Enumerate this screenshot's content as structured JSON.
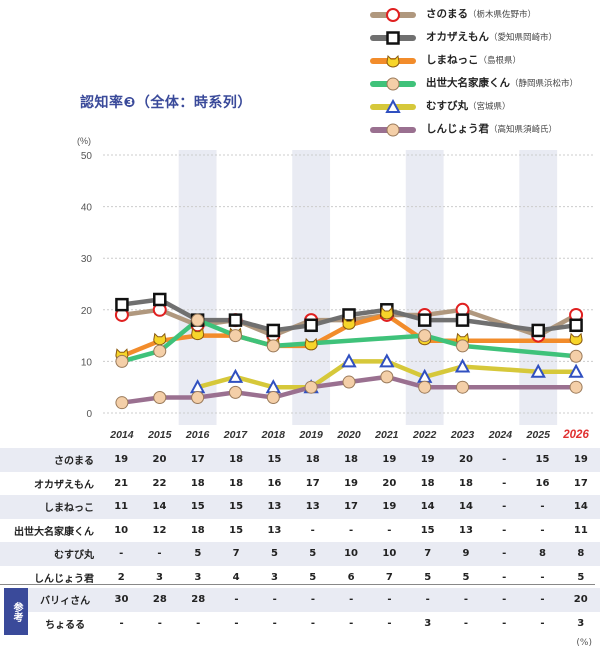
{
  "title": "認知率❸（全体：時系列）",
  "unit_top": "(%)",
  "unit_bottom": "(%)",
  "chart_data": {
    "type": "line",
    "x": [
      "2014",
      "2015",
      "2016",
      "2017",
      "2018",
      "2019",
      "2020",
      "2021",
      "2022",
      "2023",
      "2024",
      "2025",
      "2026"
    ],
    "highlight_x": "2026",
    "ylim": [
      0,
      50
    ],
    "yticks": [
      0,
      10,
      20,
      30,
      40,
      50
    ],
    "series": [
      {
        "name": "さのまる",
        "location": "（栃木県佐野市）",
        "color": "#b0987e",
        "marker": "red-circle",
        "values": [
          19,
          20,
          17,
          18,
          15,
          18,
          18,
          19,
          19,
          20,
          null,
          15,
          19
        ]
      },
      {
        "name": "オカザえもん",
        "location": "（愛知県岡崎市）",
        "color": "#707070",
        "marker": "black-square",
        "values": [
          21,
          22,
          18,
          18,
          16,
          17,
          19,
          20,
          18,
          18,
          null,
          16,
          17
        ]
      },
      {
        "name": "しまねっこ",
        "location": "（島根県）",
        "color": "#f28c2b",
        "marker": "yellow-cat",
        "values": [
          11,
          14,
          15,
          15,
          13,
          13,
          17,
          19,
          14,
          14,
          null,
          null,
          14
        ]
      },
      {
        "name": "出世大名家康くん",
        "location": "（静岡県浜松市）",
        "color": "#3fc27a",
        "marker": "peach-circle",
        "values": [
          10,
          12,
          18,
          15,
          13,
          null,
          null,
          null,
          15,
          13,
          null,
          null,
          11
        ]
      },
      {
        "name": "むすび丸",
        "location": "（宮城県）",
        "color": "#d6c83a",
        "marker": "blue-triangle",
        "values": [
          null,
          null,
          5,
          7,
          5,
          5,
          10,
          10,
          7,
          9,
          null,
          8,
          8
        ]
      },
      {
        "name": "しんじょう君",
        "location": "（高知県須崎氏）",
        "color": "#9a7090",
        "marker": "peach-circle",
        "values": [
          2,
          3,
          3,
          4,
          3,
          5,
          6,
          7,
          5,
          5,
          null,
          null,
          5
        ]
      }
    ]
  },
  "table": {
    "rows": [
      {
        "name": "さのまる",
        "cells": [
          "19",
          "20",
          "17",
          "18",
          "15",
          "18",
          "18",
          "19",
          "19",
          "20",
          "-",
          "15",
          "19"
        ]
      },
      {
        "name": "オカザえもん",
        "cells": [
          "21",
          "22",
          "18",
          "18",
          "16",
          "17",
          "19",
          "20",
          "18",
          "18",
          "-",
          "16",
          "17"
        ]
      },
      {
        "name": "しまねっこ",
        "cells": [
          "11",
          "14",
          "15",
          "15",
          "13",
          "13",
          "17",
          "19",
          "14",
          "14",
          "-",
          "-",
          "14"
        ]
      },
      {
        "name": "出世大名家康くん",
        "cells": [
          "10",
          "12",
          "18",
          "15",
          "13",
          "-",
          "-",
          "-",
          "15",
          "13",
          "-",
          "-",
          "11"
        ]
      },
      {
        "name": "むすび丸",
        "cells": [
          "-",
          "-",
          "5",
          "7",
          "5",
          "5",
          "10",
          "10",
          "7",
          "9",
          "-",
          "8",
          "8"
        ]
      },
      {
        "name": "しんじょう君",
        "cells": [
          "2",
          "3",
          "3",
          "4",
          "3",
          "5",
          "6",
          "7",
          "5",
          "5",
          "-",
          "-",
          "5"
        ]
      }
    ],
    "ref_label": "参考",
    "ref_rows": [
      {
        "name": "バリィさん",
        "cells": [
          "30",
          "28",
          "28",
          "-",
          "-",
          "-",
          "-",
          "-",
          "-",
          "-",
          "-",
          "-",
          "20"
        ]
      },
      {
        "name": "ちょるる",
        "cells": [
          "-",
          "-",
          "-",
          "-",
          "-",
          "-",
          "-",
          "-",
          "3",
          "-",
          "-",
          "-",
          "3"
        ]
      }
    ]
  }
}
